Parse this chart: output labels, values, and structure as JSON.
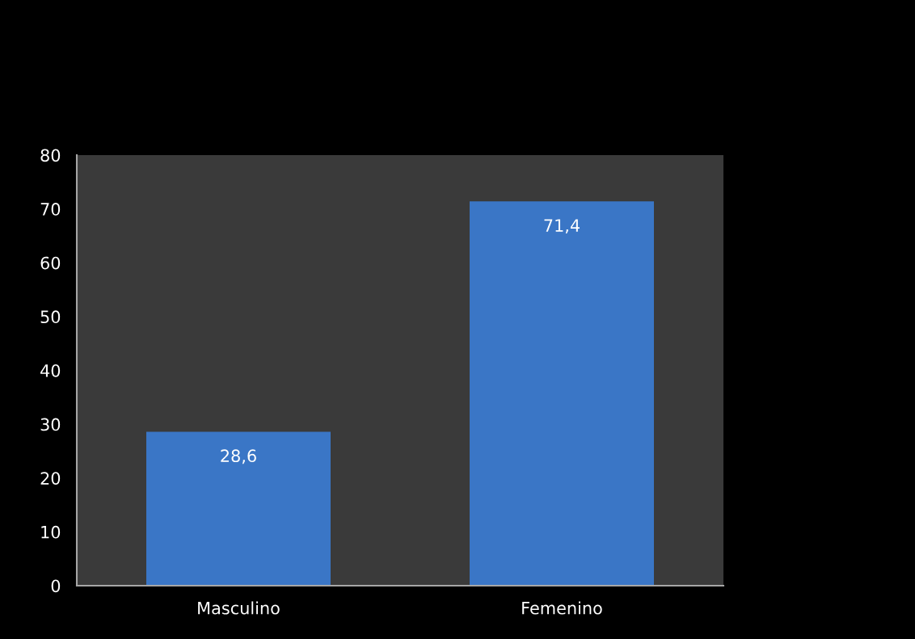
{
  "chart_data": {
    "type": "bar",
    "categories": [
      "Masculino",
      "Femenino"
    ],
    "values": [
      28.6,
      71.4
    ],
    "color": "#3a76c6",
    "value_labels": [
      "28,6",
      "71,4"
    ],
    "ylim": [
      0,
      80
    ],
    "yticks": [
      0,
      10,
      20,
      30,
      40,
      50,
      60,
      70,
      80
    ],
    "grid": false,
    "legend": false
  }
}
